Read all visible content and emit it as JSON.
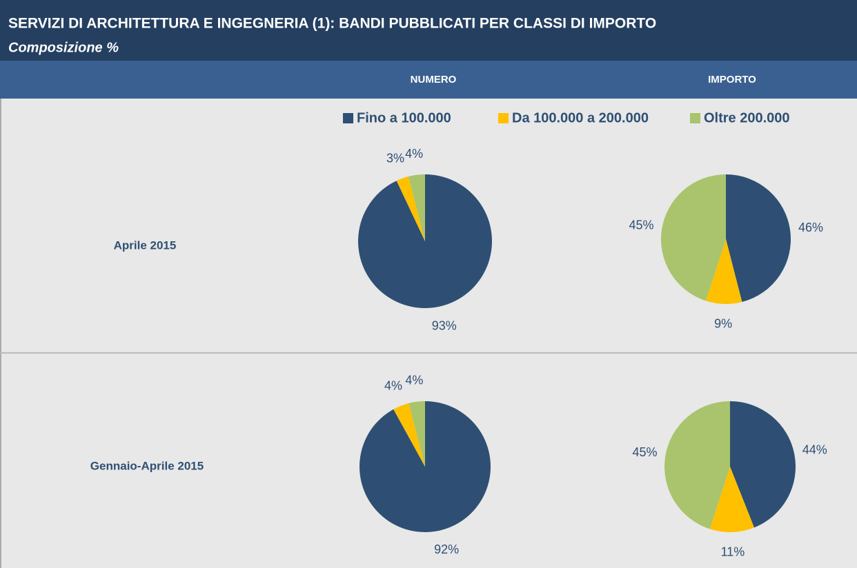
{
  "title": "SERVIZI DI ARCHITETTURA E INGEGNERIA (1): BANDI PUBBLICATI PER CLASSI DI IMPORTO",
  "subtitle": "Composizione %",
  "columns": [
    "NUMERO",
    "IMPORTO"
  ],
  "rows": [
    "Aprile 2015",
    "Gennaio-Aprile 2015"
  ],
  "chart_data": [
    {
      "type": "pie",
      "categories": [
        "Fino a 100.000",
        "Da 100.000 a 200.000",
        "Oltre 200.000"
      ],
      "colors": [
        "#2e4f73",
        "#ffc000",
        "#a9c46c"
      ],
      "values": [
        93,
        3,
        4
      ],
      "value_labels": [
        "93%",
        "3%",
        "4%"
      ]
    },
    {
      "type": "pie",
      "categories": [
        "Fino a 100.000",
        "Da 100.000 a 200.000",
        "Oltre 200.000"
      ],
      "colors": [
        "#2e4f73",
        "#ffc000",
        "#a9c46c"
      ],
      "values": [
        46,
        9,
        45
      ],
      "value_labels": [
        "46%",
        "9%",
        "45%"
      ]
    },
    {
      "type": "pie",
      "categories": [
        "Fino a 100.000",
        "Da 100.000 a 200.000",
        "Oltre 200.000"
      ],
      "colors": [
        "#2e4f73",
        "#ffc000",
        "#a9c46c"
      ],
      "values": [
        92,
        4,
        4
      ],
      "value_labels": [
        "92%",
        "4%",
        "4%"
      ]
    },
    {
      "type": "pie",
      "categories": [
        "Fino a 100.000",
        "Da 100.000 a 200.000",
        "Oltre 200.000"
      ],
      "colors": [
        "#2e4f73",
        "#ffc000",
        "#a9c46c"
      ],
      "values": [
        44,
        11,
        45
      ],
      "value_labels": [
        "44%",
        "11%",
        "45%"
      ]
    }
  ]
}
